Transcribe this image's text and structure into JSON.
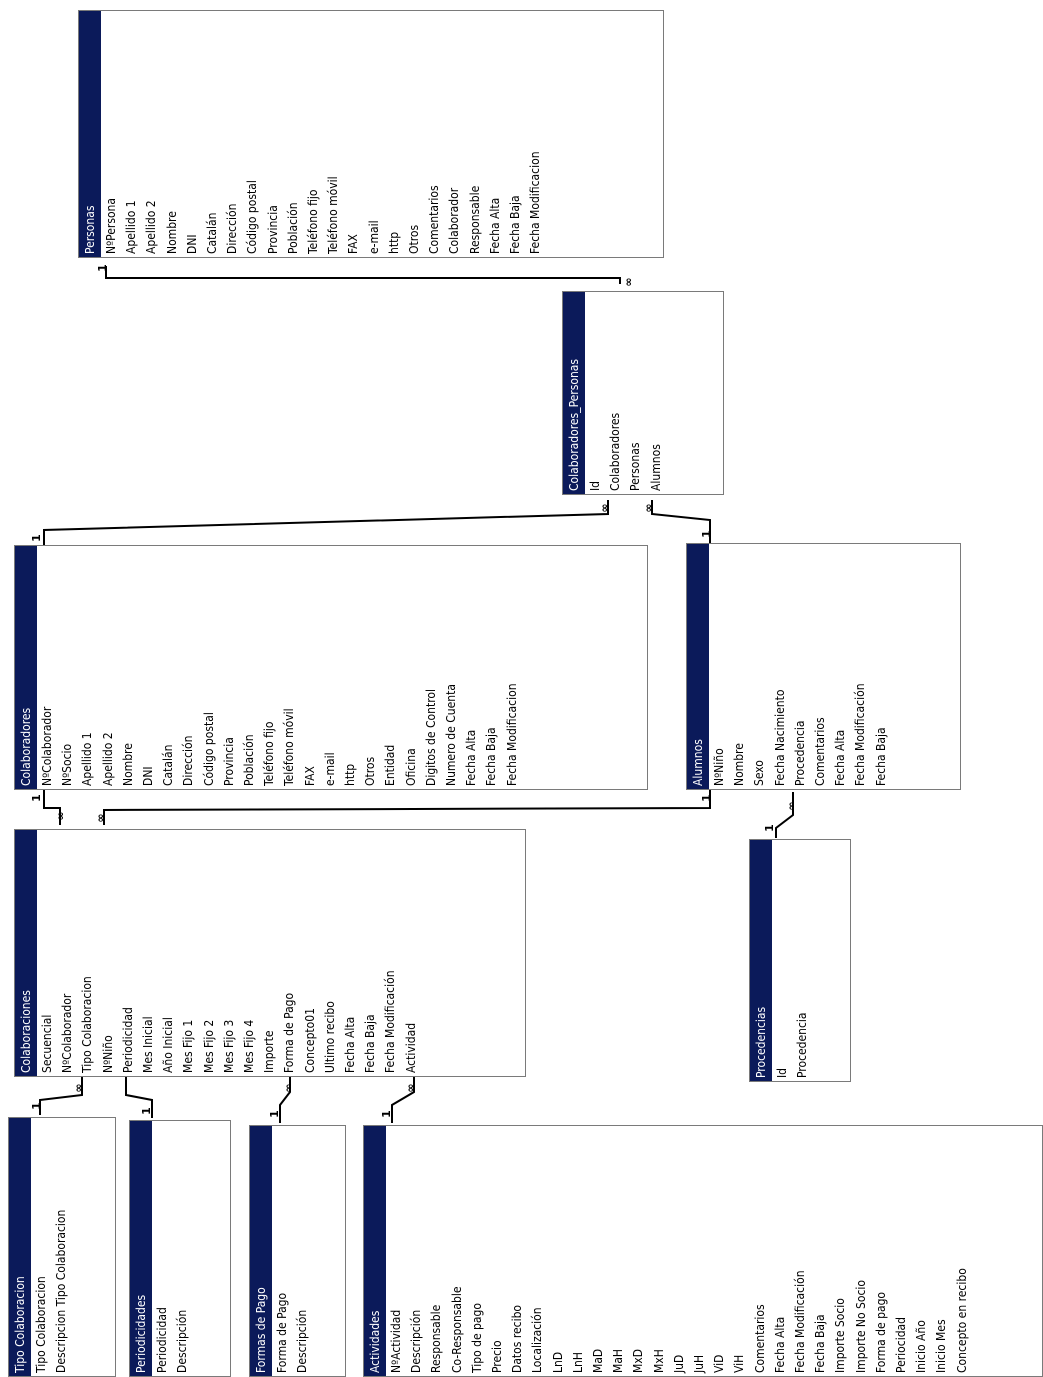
{
  "tables": [
    {
      "name": "Personas",
      "fields": [
        "NºPersona",
        "Apellido 1",
        "Apellido 2",
        "Nombre",
        "DNI",
        "Catalán",
        "Dirección",
        "Código postal",
        "Provincia",
        "Población",
        "Teléfono fijo",
        "Teléfono móvil",
        "FAX",
        "e-mail",
        "http",
        "Otros",
        "Comentarios",
        "Colaborador",
        "Responsable",
        "Fecha Alta",
        "Fecha Baja",
        "Fecha Modificacion"
      ]
    },
    {
      "name": "Colaboradores_Personas",
      "fields": [
        "Id",
        "Colaboradores",
        "Personas",
        "Alumnos"
      ]
    },
    {
      "name": "Colaboradores",
      "fields": [
        "NºColaborador",
        "NºSocio",
        "Apellido 1",
        "Apellido 2",
        "Nombre",
        "DNI",
        "Catalán",
        "Dirección",
        "Código postal",
        "Provincia",
        "Población",
        "Teléfono fijo",
        "Teléfono móvil",
        "FAX",
        "e-mail",
        "http",
        "Otros",
        "Entidad",
        "Oficina",
        "Digitos de Control",
        "Numero de Cuenta",
        "Fecha Alta",
        "Fecha Baja",
        "Fecha Modificacion"
      ]
    },
    {
      "name": "Alumnos",
      "fields": [
        "NºNiño",
        "Nombre",
        "Sexo",
        "Fecha Nacimiento",
        "Procedencia",
        "Comentarios",
        "Fecha Alta",
        "Fecha Modificación",
        "Fecha Baja"
      ]
    },
    {
      "name": "Colaboraciones",
      "fields": [
        "Secuencial",
        "NºColaborador",
        "Tipo Colaboracion",
        "NºNiño",
        "Periodicidad",
        "Mes Inicial",
        "Año Inicial",
        "Mes Fijo 1",
        "Mes Fijo 2",
        "Mes Fijo 3",
        "Mes Fijo 4",
        "Importe",
        "Forma de Pago",
        "Concepto01",
        "Ultimo recibo",
        "Fecha Alta",
        "Fecha Baja",
        "Fecha Modificación",
        "Actividad"
      ]
    },
    {
      "name": "Procedencias",
      "fields": [
        "Id",
        "Procedencia"
      ]
    },
    {
      "name": "Tipo Colaboracion",
      "fields": [
        "Tipo Colaboracion",
        "Descripcion Tipo Colaboracion"
      ]
    },
    {
      "name": "Periodicidades",
      "fields": [
        "Periodicidad",
        "Descripción"
      ]
    },
    {
      "name": "Formas de Pago",
      "fields": [
        "Forma de Pago",
        "Descripción"
      ]
    },
    {
      "name": "Actividades",
      "fields": [
        "NºActividad",
        "Descripción",
        "Responsable",
        "Co-Responsable",
        "Tipo de pago",
        "Precio",
        "Datos recibo",
        "Localización",
        "LnD",
        "LnH",
        "MaD",
        "MaH",
        "MxD",
        "MxH",
        "JuD",
        "JuH",
        "ViD",
        "ViH",
        "Comentarios",
        "Fecha Alta",
        "Fecha Modificación",
        "Fecha Baja",
        "Importe Socio",
        "Importe No Socio",
        "Forma de pago",
        "Periocidad",
        "Inicio Año",
        "Inicio Mes",
        "Concepto en recibo"
      ]
    }
  ],
  "relationship_labels": {
    "one": "1",
    "many": "∞"
  }
}
